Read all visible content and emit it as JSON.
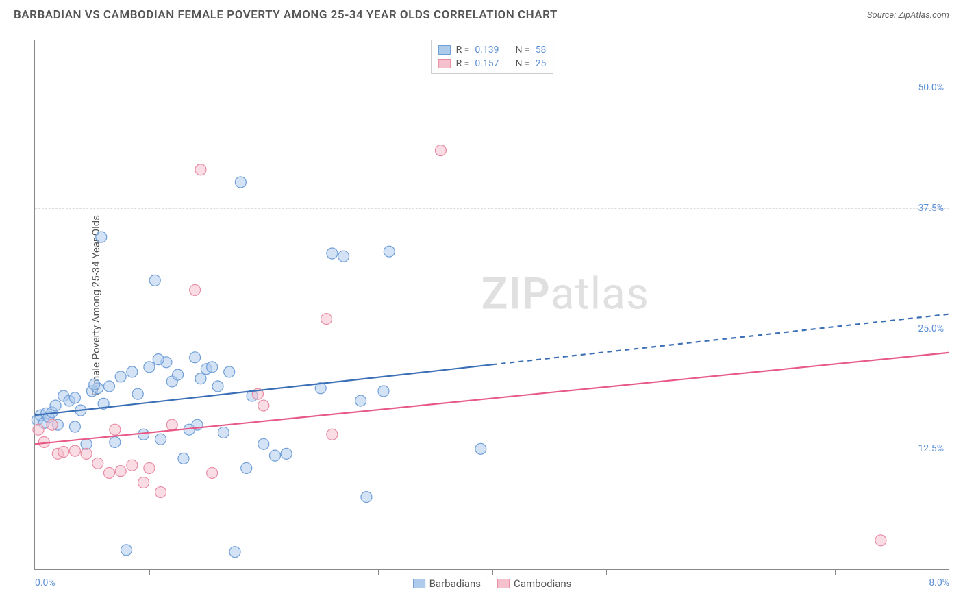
{
  "title": "BARBADIAN VS CAMBODIAN FEMALE POVERTY AMONG 25-34 YEAR OLDS CORRELATION CHART",
  "source": "Source: ZipAtlas.com",
  "ylabel": "Female Poverty Among 25-34 Year Olds",
  "watermark_a": "ZIP",
  "watermark_b": "atlas",
  "chart": {
    "type": "scatter",
    "xlim": [
      0.0,
      8.0
    ],
    "ylim": [
      0.0,
      55.0
    ],
    "x_min_label": "0.0%",
    "x_max_label": "8.0%",
    "x_tick_step": 1.0,
    "y_gridlines": [
      12.5,
      25.0,
      37.5,
      50.0,
      55.0
    ],
    "y_tick_labels": [
      "12.5%",
      "25.0%",
      "37.5%",
      "50.0%"
    ],
    "y_tick_values": [
      12.5,
      25.0,
      37.5,
      50.0
    ],
    "background_color": "#ffffff",
    "grid_color": "#dddddd",
    "axis_color": "#888888",
    "label_color": "#555555",
    "tick_label_color": "#5b8fd6",
    "marker_radius": 8,
    "marker_stroke_width": 1.2,
    "series": [
      {
        "name": "Barbadians",
        "fill": "#aecbec",
        "stroke": "#6f9fd8",
        "fill_opacity": 0.55,
        "line_color": "#3b6fb5",
        "line_width": 2.2,
        "R": "0.139",
        "N": "58",
        "trend": {
          "y_at_xmin": 16.0,
          "y_at_xmax": 26.5,
          "solid_until_x": 4.0
        },
        "points": [
          [
            0.02,
            15.5
          ],
          [
            0.05,
            16.0
          ],
          [
            0.08,
            15.2
          ],
          [
            0.1,
            16.2
          ],
          [
            0.12,
            15.8
          ],
          [
            0.15,
            16.3
          ],
          [
            0.18,
            17.0
          ],
          [
            0.2,
            15.0
          ],
          [
            0.25,
            18.0
          ],
          [
            0.3,
            17.5
          ],
          [
            0.35,
            14.8
          ],
          [
            0.4,
            16.5
          ],
          [
            0.45,
            13.0
          ],
          [
            0.5,
            18.5
          ],
          [
            0.55,
            18.8
          ],
          [
            0.58,
            34.5
          ],
          [
            0.6,
            17.2
          ],
          [
            0.65,
            19.0
          ],
          [
            0.7,
            13.2
          ],
          [
            0.75,
            20.0
          ],
          [
            0.8,
            2.0
          ],
          [
            0.85,
            20.5
          ],
          [
            0.9,
            18.2
          ],
          [
            0.95,
            14.0
          ],
          [
            1.0,
            21.0
          ],
          [
            1.05,
            30.0
          ],
          [
            1.1,
            13.5
          ],
          [
            1.15,
            21.5
          ],
          [
            1.2,
            19.5
          ],
          [
            1.25,
            20.2
          ],
          [
            1.3,
            11.5
          ],
          [
            1.35,
            14.5
          ],
          [
            1.4,
            22.0
          ],
          [
            1.45,
            19.8
          ],
          [
            1.5,
            20.8
          ],
          [
            1.55,
            21.0
          ],
          [
            1.6,
            19.0
          ],
          [
            1.65,
            14.2
          ],
          [
            1.7,
            20.5
          ],
          [
            1.75,
            1.8
          ],
          [
            1.8,
            40.2
          ],
          [
            1.85,
            10.5
          ],
          [
            1.9,
            18.0
          ],
          [
            2.0,
            13.0
          ],
          [
            2.1,
            11.8
          ],
          [
            2.2,
            12.0
          ],
          [
            2.5,
            18.8
          ],
          [
            2.6,
            32.8
          ],
          [
            2.7,
            32.5
          ],
          [
            2.85,
            17.5
          ],
          [
            2.9,
            7.5
          ],
          [
            3.05,
            18.5
          ],
          [
            3.1,
            33.0
          ],
          [
            3.9,
            12.5
          ],
          [
            0.35,
            17.8
          ],
          [
            0.52,
            19.2
          ],
          [
            1.08,
            21.8
          ],
          [
            1.42,
            15.0
          ]
        ]
      },
      {
        "name": "Cambodians",
        "fill": "#f5c1cd",
        "stroke": "#e88ba3",
        "fill_opacity": 0.55,
        "line_color": "#e75a87",
        "line_width": 2.2,
        "R": "0.157",
        "N": "25",
        "trend": {
          "y_at_xmin": 13.0,
          "y_at_xmax": 22.5,
          "solid_until_x": 8.0
        },
        "points": [
          [
            0.03,
            14.5
          ],
          [
            0.08,
            13.2
          ],
          [
            0.2,
            12.0
          ],
          [
            0.25,
            12.2
          ],
          [
            0.35,
            12.3
          ],
          [
            0.45,
            12.0
          ],
          [
            0.55,
            11.0
          ],
          [
            0.65,
            10.0
          ],
          [
            0.7,
            14.5
          ],
          [
            0.75,
            10.2
          ],
          [
            0.85,
            10.8
          ],
          [
            0.95,
            9.0
          ],
          [
            1.0,
            10.5
          ],
          [
            1.1,
            8.0
          ],
          [
            1.2,
            15.0
          ],
          [
            1.4,
            29.0
          ],
          [
            1.45,
            41.5
          ],
          [
            1.55,
            10.0
          ],
          [
            1.95,
            18.2
          ],
          [
            2.0,
            17.0
          ],
          [
            2.55,
            26.0
          ],
          [
            2.6,
            14.0
          ],
          [
            3.55,
            43.5
          ],
          [
            7.4,
            3.0
          ],
          [
            0.15,
            15.0
          ]
        ]
      }
    ]
  },
  "legend_top": {
    "R_label": "R =",
    "N_label": "N ="
  },
  "legend_bottom": {
    "items": [
      "Barbadians",
      "Cambodians"
    ]
  }
}
